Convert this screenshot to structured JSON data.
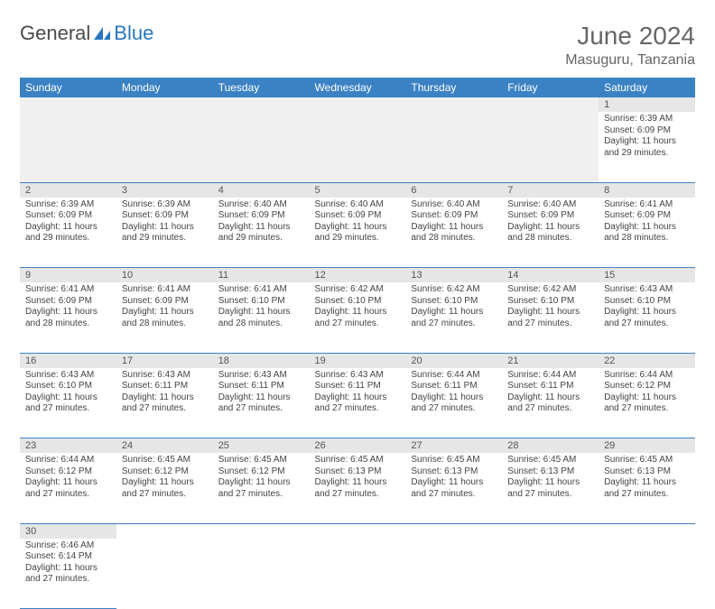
{
  "logo": {
    "text1": "General",
    "text2": "Blue"
  },
  "title": "June 2024",
  "location": "Masuguru, Tanzania",
  "colors": {
    "header_bg": "#3b82c4",
    "header_fg": "#ffffff",
    "daynum_bg": "#e6e6e6",
    "row_border": "#3b82c4",
    "logo_accent": "#2877bd",
    "logo_gray": "#4a4a4a"
  },
  "daysOfWeek": [
    "Sunday",
    "Monday",
    "Tuesday",
    "Wednesday",
    "Thursday",
    "Friday",
    "Saturday"
  ],
  "weeks": [
    {
      "nums": [
        "",
        "",
        "",
        "",
        "",
        "",
        "1"
      ],
      "cells": [
        null,
        null,
        null,
        null,
        null,
        null,
        {
          "sunrise": "Sunrise: 6:39 AM",
          "sunset": "Sunset: 6:09 PM",
          "day1": "Daylight: 11 hours",
          "day2": "and 29 minutes."
        }
      ]
    },
    {
      "nums": [
        "2",
        "3",
        "4",
        "5",
        "6",
        "7",
        "8"
      ],
      "cells": [
        {
          "sunrise": "Sunrise: 6:39 AM",
          "sunset": "Sunset: 6:09 PM",
          "day1": "Daylight: 11 hours",
          "day2": "and 29 minutes."
        },
        {
          "sunrise": "Sunrise: 6:39 AM",
          "sunset": "Sunset: 6:09 PM",
          "day1": "Daylight: 11 hours",
          "day2": "and 29 minutes."
        },
        {
          "sunrise": "Sunrise: 6:40 AM",
          "sunset": "Sunset: 6:09 PM",
          "day1": "Daylight: 11 hours",
          "day2": "and 29 minutes."
        },
        {
          "sunrise": "Sunrise: 6:40 AM",
          "sunset": "Sunset: 6:09 PM",
          "day1": "Daylight: 11 hours",
          "day2": "and 29 minutes."
        },
        {
          "sunrise": "Sunrise: 6:40 AM",
          "sunset": "Sunset: 6:09 PM",
          "day1": "Daylight: 11 hours",
          "day2": "and 28 minutes."
        },
        {
          "sunrise": "Sunrise: 6:40 AM",
          "sunset": "Sunset: 6:09 PM",
          "day1": "Daylight: 11 hours",
          "day2": "and 28 minutes."
        },
        {
          "sunrise": "Sunrise: 6:41 AM",
          "sunset": "Sunset: 6:09 PM",
          "day1": "Daylight: 11 hours",
          "day2": "and 28 minutes."
        }
      ]
    },
    {
      "nums": [
        "9",
        "10",
        "11",
        "12",
        "13",
        "14",
        "15"
      ],
      "cells": [
        {
          "sunrise": "Sunrise: 6:41 AM",
          "sunset": "Sunset: 6:09 PM",
          "day1": "Daylight: 11 hours",
          "day2": "and 28 minutes."
        },
        {
          "sunrise": "Sunrise: 6:41 AM",
          "sunset": "Sunset: 6:09 PM",
          "day1": "Daylight: 11 hours",
          "day2": "and 28 minutes."
        },
        {
          "sunrise": "Sunrise: 6:41 AM",
          "sunset": "Sunset: 6:10 PM",
          "day1": "Daylight: 11 hours",
          "day2": "and 28 minutes."
        },
        {
          "sunrise": "Sunrise: 6:42 AM",
          "sunset": "Sunset: 6:10 PM",
          "day1": "Daylight: 11 hours",
          "day2": "and 27 minutes."
        },
        {
          "sunrise": "Sunrise: 6:42 AM",
          "sunset": "Sunset: 6:10 PM",
          "day1": "Daylight: 11 hours",
          "day2": "and 27 minutes."
        },
        {
          "sunrise": "Sunrise: 6:42 AM",
          "sunset": "Sunset: 6:10 PM",
          "day1": "Daylight: 11 hours",
          "day2": "and 27 minutes."
        },
        {
          "sunrise": "Sunrise: 6:43 AM",
          "sunset": "Sunset: 6:10 PM",
          "day1": "Daylight: 11 hours",
          "day2": "and 27 minutes."
        }
      ]
    },
    {
      "nums": [
        "16",
        "17",
        "18",
        "19",
        "20",
        "21",
        "22"
      ],
      "cells": [
        {
          "sunrise": "Sunrise: 6:43 AM",
          "sunset": "Sunset: 6:10 PM",
          "day1": "Daylight: 11 hours",
          "day2": "and 27 minutes."
        },
        {
          "sunrise": "Sunrise: 6:43 AM",
          "sunset": "Sunset: 6:11 PM",
          "day1": "Daylight: 11 hours",
          "day2": "and 27 minutes."
        },
        {
          "sunrise": "Sunrise: 6:43 AM",
          "sunset": "Sunset: 6:11 PM",
          "day1": "Daylight: 11 hours",
          "day2": "and 27 minutes."
        },
        {
          "sunrise": "Sunrise: 6:43 AM",
          "sunset": "Sunset: 6:11 PM",
          "day1": "Daylight: 11 hours",
          "day2": "and 27 minutes."
        },
        {
          "sunrise": "Sunrise: 6:44 AM",
          "sunset": "Sunset: 6:11 PM",
          "day1": "Daylight: 11 hours",
          "day2": "and 27 minutes."
        },
        {
          "sunrise": "Sunrise: 6:44 AM",
          "sunset": "Sunset: 6:11 PM",
          "day1": "Daylight: 11 hours",
          "day2": "and 27 minutes."
        },
        {
          "sunrise": "Sunrise: 6:44 AM",
          "sunset": "Sunset: 6:12 PM",
          "day1": "Daylight: 11 hours",
          "day2": "and 27 minutes."
        }
      ]
    },
    {
      "nums": [
        "23",
        "24",
        "25",
        "26",
        "27",
        "28",
        "29"
      ],
      "cells": [
        {
          "sunrise": "Sunrise: 6:44 AM",
          "sunset": "Sunset: 6:12 PM",
          "day1": "Daylight: 11 hours",
          "day2": "and 27 minutes."
        },
        {
          "sunrise": "Sunrise: 6:45 AM",
          "sunset": "Sunset: 6:12 PM",
          "day1": "Daylight: 11 hours",
          "day2": "and 27 minutes."
        },
        {
          "sunrise": "Sunrise: 6:45 AM",
          "sunset": "Sunset: 6:12 PM",
          "day1": "Daylight: 11 hours",
          "day2": "and 27 minutes."
        },
        {
          "sunrise": "Sunrise: 6:45 AM",
          "sunset": "Sunset: 6:13 PM",
          "day1": "Daylight: 11 hours",
          "day2": "and 27 minutes."
        },
        {
          "sunrise": "Sunrise: 6:45 AM",
          "sunset": "Sunset: 6:13 PM",
          "day1": "Daylight: 11 hours",
          "day2": "and 27 minutes."
        },
        {
          "sunrise": "Sunrise: 6:45 AM",
          "sunset": "Sunset: 6:13 PM",
          "day1": "Daylight: 11 hours",
          "day2": "and 27 minutes."
        },
        {
          "sunrise": "Sunrise: 6:45 AM",
          "sunset": "Sunset: 6:13 PM",
          "day1": "Daylight: 11 hours",
          "day2": "and 27 minutes."
        }
      ]
    },
    {
      "nums": [
        "30",
        "",
        "",
        "",
        "",
        "",
        ""
      ],
      "cells": [
        {
          "sunrise": "Sunrise: 6:46 AM",
          "sunset": "Sunset: 6:14 PM",
          "day1": "Daylight: 11 hours",
          "day2": "and 27 minutes."
        },
        null,
        null,
        null,
        null,
        null,
        null
      ]
    }
  ]
}
